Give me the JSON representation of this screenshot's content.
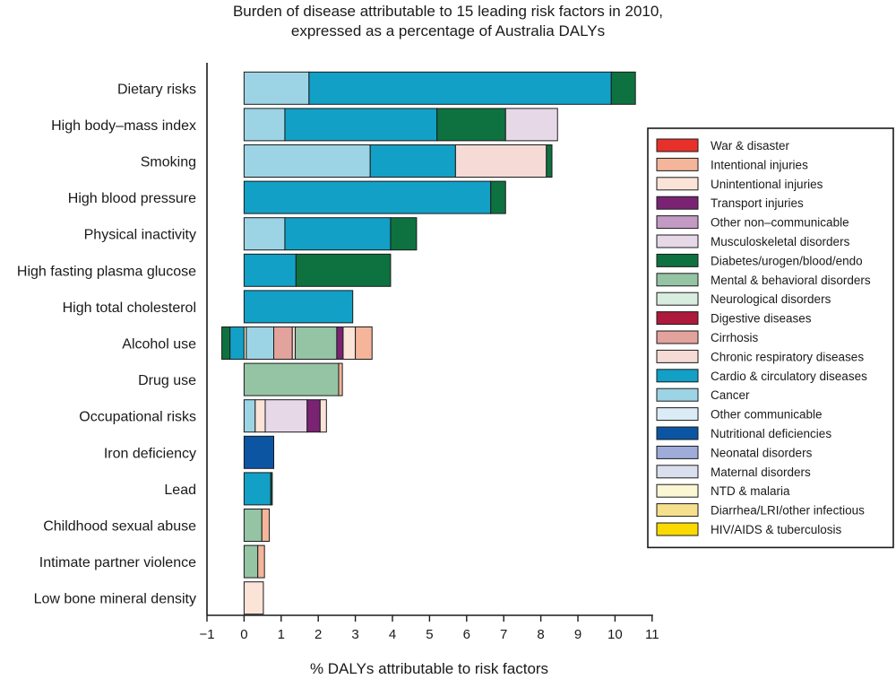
{
  "chart_data": {
    "type": "bar",
    "orientation": "horizontal",
    "stacked": true,
    "title": "Burden of disease attributable to 15 leading risk factors in 2010,",
    "subtitle": "expressed as a percentage of Australia DALYs",
    "xlabel": "% DALYs attributable to risk factors",
    "ylabel": "",
    "xlim": [
      -1,
      11
    ],
    "xticks": [
      "-1",
      "0",
      "1",
      "2",
      "3",
      "4",
      "5",
      "6",
      "7",
      "8",
      "9",
      "10",
      "11"
    ],
    "grid": false,
    "legend_position": "right",
    "categories": [
      "Dietary risks",
      "High body–mass index",
      "Smoking",
      "High blood pressure",
      "Physical inactivity",
      "High fasting plasma glucose",
      "High total cholesterol",
      "Alcohol use",
      "Drug use",
      "Occupational risks",
      "Iron deficiency",
      "Lead",
      "Childhood sexual abuse",
      "Intimate partner violence",
      "Low bone mineral density"
    ],
    "series": [
      {
        "name": "War & disaster",
        "color": "#e8302a"
      },
      {
        "name": "Intentional injuries",
        "color": "#f5b59a"
      },
      {
        "name": "Unintentional injuries",
        "color": "#fbe3d8"
      },
      {
        "name": "Transport injuries",
        "color": "#7b2373"
      },
      {
        "name": "Other non–communicable",
        "color": "#c29ac4"
      },
      {
        "name": "Musculoskeletal disorders",
        "color": "#e7d8e8"
      },
      {
        "name": "Diabetes/urogen/blood/endo",
        "color": "#0e7240"
      },
      {
        "name": "Mental & behavioral disorders",
        "color": "#95c4a4"
      },
      {
        "name": "Neurological disorders",
        "color": "#d8ecdf"
      },
      {
        "name": "Digestive diseases",
        "color": "#ad1a3c"
      },
      {
        "name": "Cirrhosis",
        "color": "#e3a39d"
      },
      {
        "name": "Chronic respiratory diseases",
        "color": "#f6dad6"
      },
      {
        "name": "Cardio & circulatory diseases",
        "color": "#12a0c6"
      },
      {
        "name": "Cancer",
        "color": "#9dd4e5"
      },
      {
        "name": "Other communicable",
        "color": "#dcecf7"
      },
      {
        "name": "Nutritional deficiencies",
        "color": "#0b55a3"
      },
      {
        "name": "Neonatal disorders",
        "color": "#9fabd9"
      },
      {
        "name": "Maternal disorders",
        "color": "#dadfee"
      },
      {
        "name": "NTD & malaria",
        "color": "#fbf6d3"
      },
      {
        "name": "Diarrhea/LRI/other infectious",
        "color": "#f6e08e"
      },
      {
        "name": "HIV/AIDS & tuberculosis",
        "color": "#f9d900"
      }
    ],
    "bars": [
      {
        "category": "Dietary risks",
        "segments": [
          {
            "series": "Cancer",
            "start": 0,
            "end": 1.75
          },
          {
            "series": "Cardio & circulatory diseases",
            "start": 1.75,
            "end": 9.9
          },
          {
            "series": "Diabetes/urogen/blood/endo",
            "start": 9.9,
            "end": 10.55
          }
        ]
      },
      {
        "category": "High body–mass index",
        "segments": [
          {
            "series": "Cancer",
            "start": 0,
            "end": 1.1
          },
          {
            "series": "Cardio & circulatory diseases",
            "start": 1.1,
            "end": 5.2
          },
          {
            "series": "Diabetes/urogen/blood/endo",
            "start": 5.2,
            "end": 7.05
          },
          {
            "series": "Musculoskeletal disorders",
            "start": 7.05,
            "end": 8.45
          }
        ]
      },
      {
        "category": "Smoking",
        "segments": [
          {
            "series": "Cancer",
            "start": 0,
            "end": 3.4
          },
          {
            "series": "Cardio & circulatory diseases",
            "start": 3.4,
            "end": 5.7
          },
          {
            "series": "Chronic respiratory diseases",
            "start": 5.7,
            "end": 8.15
          },
          {
            "series": "Diabetes/urogen/blood/endo",
            "start": 8.15,
            "end": 8.3
          }
        ]
      },
      {
        "category": "High blood pressure",
        "segments": [
          {
            "series": "Cardio & circulatory diseases",
            "start": 0,
            "end": 6.65
          },
          {
            "series": "Diabetes/urogen/blood/endo",
            "start": 6.65,
            "end": 7.05
          }
        ]
      },
      {
        "category": "Physical inactivity",
        "segments": [
          {
            "series": "Cancer",
            "start": 0,
            "end": 1.1
          },
          {
            "series": "Cardio & circulatory diseases",
            "start": 1.1,
            "end": 3.95
          },
          {
            "series": "Diabetes/urogen/blood/endo",
            "start": 3.95,
            "end": 4.65
          }
        ]
      },
      {
        "category": "High fasting plasma glucose",
        "segments": [
          {
            "series": "Cardio & circulatory diseases",
            "start": 0,
            "end": 1.4
          },
          {
            "series": "Diabetes/urogen/blood/endo",
            "start": 1.4,
            "end": 3.95
          }
        ]
      },
      {
        "category": "High total cholesterol",
        "segments": [
          {
            "series": "Cardio & circulatory diseases",
            "start": 0,
            "end": 2.93
          }
        ]
      },
      {
        "category": "Alcohol use",
        "segments": [
          {
            "series": "Diabetes/urogen/blood/endo",
            "start": -0.6,
            "end": -0.38
          },
          {
            "series": "Cardio & circulatory diseases",
            "start": -0.38,
            "end": 0
          },
          {
            "series": "NTD & malaria",
            "start": 0,
            "end": 0.06
          },
          {
            "series": "Cancer",
            "start": 0.06,
            "end": 0.8
          },
          {
            "series": "Cirrhosis",
            "start": 0.8,
            "end": 1.3
          },
          {
            "series": "Chronic respiratory diseases",
            "start": 1.3,
            "end": 1.38
          },
          {
            "series": "Mental & behavioral disorders",
            "start": 1.38,
            "end": 2.5
          },
          {
            "series": "Transport injuries",
            "start": 2.5,
            "end": 2.67
          },
          {
            "series": "Unintentional injuries",
            "start": 2.67,
            "end": 3.0
          },
          {
            "series": "Intentional injuries",
            "start": 3.0,
            "end": 3.45
          }
        ]
      },
      {
        "category": "Drug use",
        "segments": [
          {
            "series": "Mental & behavioral disorders",
            "start": 0,
            "end": 2.55
          },
          {
            "series": "Intentional injuries",
            "start": 2.55,
            "end": 2.65
          }
        ]
      },
      {
        "category": "Occupational risks",
        "segments": [
          {
            "series": "Cancer",
            "start": 0,
            "end": 0.3
          },
          {
            "series": "Unintentional injuries",
            "start": 0.3,
            "end": 0.57
          },
          {
            "series": "Musculoskeletal disorders",
            "start": 0.57,
            "end": 1.7
          },
          {
            "series": "Transport injuries",
            "start": 1.7,
            "end": 2.05
          },
          {
            "series": "Unintentional injuries",
            "start": 2.05,
            "end": 2.22
          }
        ]
      },
      {
        "category": "Iron deficiency",
        "segments": [
          {
            "series": "Nutritional deficiencies",
            "start": 0,
            "end": 0.8
          }
        ]
      },
      {
        "category": "Lead",
        "segments": [
          {
            "series": "Cardio & circulatory diseases",
            "start": 0,
            "end": 0.72
          },
          {
            "series": "Diabetes/urogen/blood/endo",
            "start": 0.72,
            "end": 0.76
          }
        ]
      },
      {
        "category": "Childhood sexual abuse",
        "segments": [
          {
            "series": "Mental & behavioral disorders",
            "start": 0,
            "end": 0.48
          },
          {
            "series": "Intentional injuries",
            "start": 0.48,
            "end": 0.68
          }
        ]
      },
      {
        "category": "Intimate partner violence",
        "segments": [
          {
            "series": "Mental & behavioral disorders",
            "start": 0,
            "end": 0.37
          },
          {
            "series": "Intentional injuries",
            "start": 0.37,
            "end": 0.55
          }
        ]
      },
      {
        "category": "Low bone mineral density",
        "segments": [
          {
            "series": "Unintentional injuries",
            "start": 0,
            "end": 0.52
          }
        ]
      }
    ]
  }
}
